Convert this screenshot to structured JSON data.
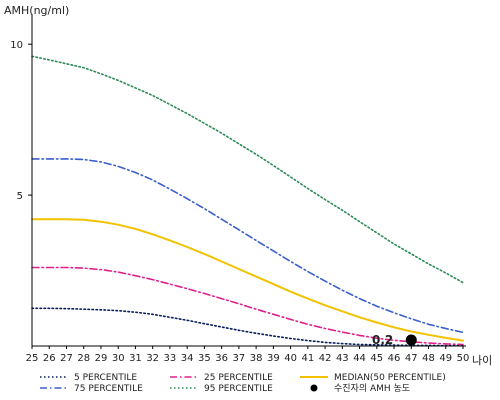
{
  "chart_data": {
    "type": "line",
    "ylabel": "AMH(ng/ml)",
    "xlabel": "나이",
    "x": [
      25,
      26,
      27,
      28,
      29,
      30,
      31,
      32,
      33,
      34,
      35,
      36,
      37,
      38,
      39,
      40,
      41,
      42,
      43,
      44,
      45,
      46,
      47,
      48,
      49,
      50
    ],
    "xlim": [
      25,
      50
    ],
    "ylim": [
      0,
      11
    ],
    "yticks": [
      5,
      10
    ],
    "grid": false,
    "legend_position": "bottom",
    "series": [
      {
        "name": "5 PERCENTILE",
        "color": "#0a1f5c",
        "style": "dotted",
        "values": [
          1.25,
          1.25,
          1.24,
          1.22,
          1.2,
          1.17,
          1.12,
          1.05,
          0.95,
          0.85,
          0.74,
          0.63,
          0.52,
          0.42,
          0.33,
          0.25,
          0.18,
          0.12,
          0.08,
          0.05,
          0.04,
          0.03,
          0.02,
          0.02,
          0.01,
          0.01
        ]
      },
      {
        "name": "75 PERCENTILE",
        "color": "#3a5fcd",
        "style": "dashdot",
        "values": [
          6.2,
          6.2,
          6.2,
          6.18,
          6.1,
          5.95,
          5.75,
          5.5,
          5.2,
          4.88,
          4.55,
          4.2,
          3.85,
          3.5,
          3.15,
          2.8,
          2.47,
          2.15,
          1.85,
          1.57,
          1.32,
          1.1,
          0.9,
          0.72,
          0.58,
          0.45
        ]
      },
      {
        "name": "25 PERCENTILE",
        "color": "#e0208a",
        "style": "dashdot",
        "values": [
          2.6,
          2.6,
          2.6,
          2.58,
          2.53,
          2.45,
          2.33,
          2.2,
          2.05,
          1.9,
          1.74,
          1.57,
          1.4,
          1.22,
          1.05,
          0.88,
          0.72,
          0.58,
          0.46,
          0.35,
          0.26,
          0.19,
          0.14,
          0.1,
          0.07,
          0.05
        ]
      },
      {
        "name": "95 PERCENTILE",
        "color": "#2e8b57",
        "style": "dotted",
        "values": [
          9.6,
          9.48,
          9.35,
          9.22,
          9.02,
          8.8,
          8.55,
          8.3,
          8.0,
          7.7,
          7.38,
          7.05,
          6.7,
          6.35,
          5.98,
          5.6,
          5.22,
          4.85,
          4.5,
          4.12,
          3.75,
          3.38,
          3.05,
          2.72,
          2.42,
          2.1
        ]
      },
      {
        "name": "MEDIAN(50 PERCENTILE)",
        "color": "#f2c200",
        "style": "solid",
        "values": [
          4.2,
          4.2,
          4.2,
          4.18,
          4.12,
          4.02,
          3.88,
          3.7,
          3.5,
          3.28,
          3.05,
          2.8,
          2.55,
          2.3,
          2.05,
          1.8,
          1.57,
          1.35,
          1.15,
          0.95,
          0.78,
          0.62,
          0.48,
          0.37,
          0.27,
          0.18
        ]
      }
    ],
    "points": [
      {
        "name": "수진자의 AMH 농도",
        "x": 47,
        "y": 0.2,
        "label": "0.2",
        "color": "#000000"
      }
    ]
  }
}
